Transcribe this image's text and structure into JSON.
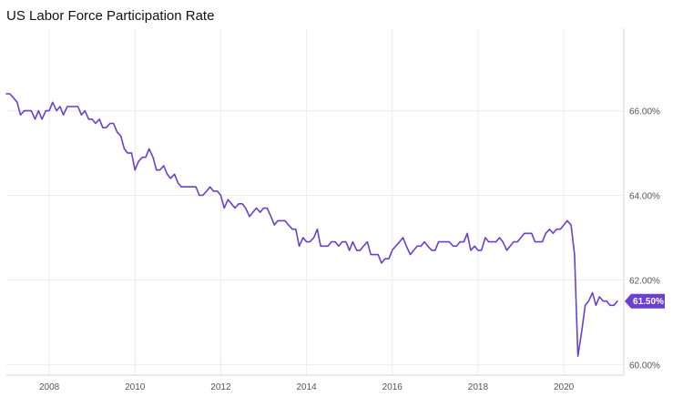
{
  "chart_data": {
    "type": "line",
    "title": "US Labor Force Participation Rate",
    "xlabel": "",
    "ylabel": "",
    "x_ticks": [
      "2008",
      "2010",
      "2012",
      "2014",
      "2016",
      "2018",
      "2020"
    ],
    "y_ticks": [
      "60.00%",
      "62.00%",
      "64.00%",
      "66.00%"
    ],
    "xlim": [
      2007.0,
      2021.4
    ],
    "ylim": [
      59.75,
      67.95
    ],
    "grid": true,
    "legend": "none",
    "line_color": "#6a3fd1",
    "last_value_label": "61.50%",
    "series": [
      {
        "x": [
          2007.0,
          2007.08,
          2007.17,
          2007.25,
          2007.33,
          2007.42,
          2007.5,
          2007.58,
          2007.67,
          2007.75,
          2007.83,
          2007.92,
          2008.0,
          2008.08,
          2008.17,
          2008.25,
          2008.33,
          2008.42,
          2008.5,
          2008.58,
          2008.67,
          2008.75,
          2008.83,
          2008.92,
          2009.0,
          2009.08,
          2009.17,
          2009.25,
          2009.33,
          2009.42,
          2009.5,
          2009.58,
          2009.67,
          2009.75,
          2009.83,
          2009.92,
          2010.0,
          2010.08,
          2010.17,
          2010.25,
          2010.33,
          2010.42,
          2010.5,
          2010.58,
          2010.67,
          2010.75,
          2010.83,
          2010.92,
          2011.0,
          2011.08,
          2011.17,
          2011.25,
          2011.33,
          2011.42,
          2011.5,
          2011.58,
          2011.67,
          2011.75,
          2011.83,
          2011.92,
          2012.0,
          2012.08,
          2012.17,
          2012.25,
          2012.33,
          2012.42,
          2012.5,
          2012.58,
          2012.67,
          2012.75,
          2012.83,
          2012.92,
          2013.0,
          2013.08,
          2013.17,
          2013.25,
          2013.33,
          2013.42,
          2013.5,
          2013.58,
          2013.67,
          2013.75,
          2013.83,
          2013.92,
          2014.0,
          2014.08,
          2014.17,
          2014.25,
          2014.33,
          2014.42,
          2014.5,
          2014.58,
          2014.67,
          2014.75,
          2014.83,
          2014.92,
          2015.0,
          2015.08,
          2015.17,
          2015.25,
          2015.33,
          2015.42,
          2015.5,
          2015.58,
          2015.67,
          2015.75,
          2015.83,
          2015.92,
          2016.0,
          2016.08,
          2016.17,
          2016.25,
          2016.33,
          2016.42,
          2016.5,
          2016.58,
          2016.67,
          2016.75,
          2016.83,
          2016.92,
          2017.0,
          2017.08,
          2017.17,
          2017.25,
          2017.33,
          2017.42,
          2017.5,
          2017.58,
          2017.67,
          2017.75,
          2017.83,
          2017.92,
          2018.0,
          2018.08,
          2018.17,
          2018.25,
          2018.33,
          2018.42,
          2018.5,
          2018.58,
          2018.67,
          2018.75,
          2018.83,
          2018.92,
          2019.0,
          2019.08,
          2019.17,
          2019.25,
          2019.33,
          2019.42,
          2019.5,
          2019.58,
          2019.67,
          2019.75,
          2019.83,
          2019.92,
          2020.0,
          2020.08,
          2020.17,
          2020.25,
          2020.33,
          2020.42,
          2020.5,
          2020.58,
          2020.67,
          2020.75,
          2020.83,
          2020.92,
          2021.0,
          2021.08,
          2021.17,
          2021.25
        ],
        "y": [
          66.4,
          66.4,
          66.3,
          66.2,
          65.9,
          66.0,
          66.0,
          66.0,
          65.8,
          66.0,
          65.8,
          66.0,
          66.0,
          66.2,
          66.0,
          66.1,
          65.9,
          66.1,
          66.1,
          66.1,
          66.1,
          65.9,
          66.0,
          65.8,
          65.8,
          65.7,
          65.8,
          65.6,
          65.6,
          65.7,
          65.7,
          65.5,
          65.4,
          65.1,
          65.0,
          65.0,
          64.6,
          64.8,
          64.9,
          64.9,
          65.1,
          64.9,
          64.6,
          64.6,
          64.7,
          64.5,
          64.4,
          64.5,
          64.3,
          64.2,
          64.2,
          64.2,
          64.2,
          64.2,
          64.0,
          64.0,
          64.1,
          64.2,
          64.1,
          64.1,
          64.0,
          63.7,
          63.9,
          63.8,
          63.7,
          63.8,
          63.8,
          63.7,
          63.5,
          63.6,
          63.7,
          63.6,
          63.7,
          63.7,
          63.5,
          63.3,
          63.4,
          63.4,
          63.4,
          63.3,
          63.2,
          63.2,
          62.8,
          63.0,
          62.9,
          62.9,
          63.0,
          63.2,
          62.8,
          62.8,
          62.8,
          62.9,
          62.9,
          62.8,
          62.9,
          62.9,
          62.7,
          62.9,
          62.7,
          62.7,
          62.8,
          62.9,
          62.6,
          62.6,
          62.6,
          62.4,
          62.5,
          62.5,
          62.7,
          62.8,
          62.9,
          63.0,
          62.8,
          62.6,
          62.7,
          62.8,
          62.8,
          62.9,
          62.8,
          62.7,
          62.7,
          62.9,
          62.9,
          62.9,
          62.9,
          62.8,
          62.8,
          62.9,
          62.9,
          63.1,
          62.7,
          62.8,
          62.7,
          62.7,
          63.0,
          62.9,
          62.9,
          62.9,
          63.0,
          62.9,
          62.7,
          62.8,
          62.9,
          62.9,
          63.0,
          63.1,
          63.1,
          63.1,
          62.9,
          62.9,
          62.9,
          63.1,
          63.2,
          63.1,
          63.2,
          63.2,
          63.3,
          63.4,
          63.3,
          62.6,
          60.2,
          60.8,
          61.4,
          61.5,
          61.7,
          61.4,
          61.6,
          61.5,
          61.5,
          61.4,
          61.4,
          61.5
        ]
      }
    ]
  }
}
